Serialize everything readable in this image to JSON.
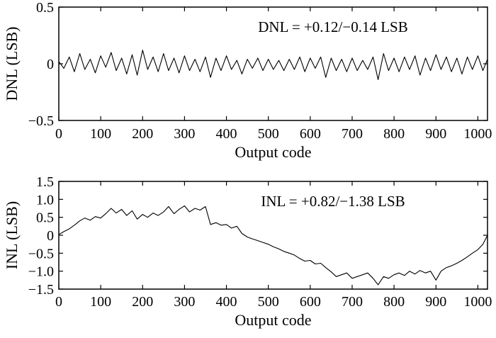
{
  "chart_data": [
    {
      "type": "line",
      "ylabel": "DNL (LSB)",
      "xlabel": "Output code",
      "annotation": "DNL = +0.12/−0.14 LSB",
      "xlim": [
        0,
        1023
      ],
      "ylim": [
        -0.5,
        0.5
      ],
      "xticks": [
        0,
        100,
        200,
        300,
        400,
        500,
        600,
        700,
        800,
        900,
        1000
      ],
      "xtick_labels": [
        "0",
        "100",
        "200",
        "300",
        "400",
        "500",
        "600",
        "700",
        "800",
        "900",
        "1000"
      ],
      "yticks": [
        -0.5,
        0,
        0.5
      ],
      "ytick_labels": [
        "−0.5",
        "0",
        "0.5"
      ],
      "series": [
        {
          "x": [
            0,
            12,
            25,
            37,
            50,
            62,
            75,
            87,
            100,
            112,
            125,
            137,
            150,
            162,
            175,
            187,
            200,
            212,
            225,
            237,
            250,
            262,
            275,
            287,
            300,
            312,
            325,
            337,
            350,
            362,
            375,
            387,
            400,
            412,
            425,
            437,
            450,
            462,
            475,
            487,
            500,
            512,
            525,
            537,
            550,
            562,
            575,
            587,
            600,
            612,
            625,
            637,
            650,
            662,
            675,
            687,
            700,
            712,
            725,
            737,
            750,
            762,
            775,
            787,
            800,
            812,
            825,
            837,
            850,
            862,
            875,
            887,
            900,
            912,
            925,
            937,
            950,
            962,
            975,
            987,
            1000,
            1012,
            1023
          ],
          "values": [
            0.02,
            -0.04,
            0.06,
            -0.07,
            0.09,
            -0.05,
            0.04,
            -0.08,
            0.07,
            -0.03,
            0.1,
            -0.06,
            0.05,
            -0.09,
            0.08,
            -0.1,
            0.12,
            -0.05,
            0.06,
            -0.07,
            0.09,
            -0.06,
            0.05,
            -0.08,
            0.07,
            -0.06,
            0.04,
            -0.07,
            0.06,
            -0.12,
            0.05,
            -0.06,
            0.07,
            -0.05,
            0.03,
            -0.09,
            0.04,
            -0.04,
            0.05,
            -0.06,
            0.04,
            -0.05,
            0.03,
            -0.06,
            0.04,
            -0.05,
            0.06,
            -0.07,
            0.05,
            -0.04,
            0.06,
            -0.12,
            0.05,
            -0.06,
            0.04,
            -0.07,
            0.05,
            -0.06,
            0.03,
            -0.05,
            0.06,
            -0.14,
            0.09,
            -0.06,
            0.05,
            -0.07,
            0.06,
            -0.05,
            0.07,
            -0.1,
            0.05,
            -0.06,
            0.08,
            -0.05,
            0.06,
            -0.07,
            0.05,
            -0.09,
            0.06,
            -0.05,
            0.07,
            -0.06,
            0.04
          ]
        }
      ]
    },
    {
      "type": "line",
      "ylabel": "INL (LSB)",
      "xlabel": "Output code",
      "annotation": "INL = +0.82/−1.38 LSB",
      "xlim": [
        0,
        1023
      ],
      "ylim": [
        -1.5,
        1.5
      ],
      "xticks": [
        0,
        100,
        200,
        300,
        400,
        500,
        600,
        700,
        800,
        900,
        1000
      ],
      "xtick_labels": [
        "0",
        "100",
        "200",
        "300",
        "400",
        "500",
        "600",
        "700",
        "800",
        "900",
        "1000"
      ],
      "yticks": [
        -1.5,
        -1.0,
        -0.5,
        0,
        0.5,
        1.0,
        1.5
      ],
      "ytick_labels": [
        "−1.5",
        "−1.0",
        "−0.5",
        "0",
        "0.5",
        "1.0",
        "1.5"
      ],
      "series": [
        {
          "x": [
            0,
            12,
            25,
            37,
            50,
            62,
            75,
            87,
            100,
            112,
            125,
            137,
            150,
            162,
            175,
            187,
            200,
            212,
            225,
            237,
            250,
            262,
            275,
            287,
            300,
            312,
            325,
            337,
            350,
            362,
            375,
            387,
            400,
            412,
            425,
            437,
            450,
            462,
            475,
            487,
            500,
            512,
            525,
            537,
            550,
            562,
            575,
            587,
            600,
            612,
            625,
            637,
            650,
            662,
            675,
            687,
            700,
            712,
            725,
            737,
            750,
            762,
            775,
            787,
            800,
            812,
            825,
            837,
            850,
            862,
            875,
            887,
            900,
            912,
            925,
            937,
            950,
            962,
            975,
            987,
            1000,
            1012,
            1023
          ],
          "values": [
            0.02,
            0.1,
            0.18,
            0.28,
            0.4,
            0.48,
            0.42,
            0.52,
            0.48,
            0.6,
            0.75,
            0.62,
            0.72,
            0.55,
            0.68,
            0.45,
            0.58,
            0.5,
            0.62,
            0.55,
            0.65,
            0.8,
            0.6,
            0.72,
            0.82,
            0.65,
            0.75,
            0.7,
            0.8,
            0.3,
            0.35,
            0.28,
            0.3,
            0.2,
            0.25,
            0.05,
            -0.05,
            -0.1,
            -0.15,
            -0.2,
            -0.25,
            -0.32,
            -0.38,
            -0.45,
            -0.5,
            -0.55,
            -0.65,
            -0.72,
            -0.7,
            -0.8,
            -0.78,
            -0.9,
            -1.02,
            -1.15,
            -1.1,
            -1.05,
            -1.2,
            -1.15,
            -1.1,
            -1.05,
            -1.2,
            -1.38,
            -1.15,
            -1.2,
            -1.1,
            -1.05,
            -1.12,
            -1.0,
            -1.08,
            -0.98,
            -1.05,
            -1.0,
            -1.25,
            -1.0,
            -0.9,
            -0.85,
            -0.78,
            -0.7,
            -0.6,
            -0.5,
            -0.4,
            -0.25,
            0.0
          ]
        }
      ]
    }
  ]
}
